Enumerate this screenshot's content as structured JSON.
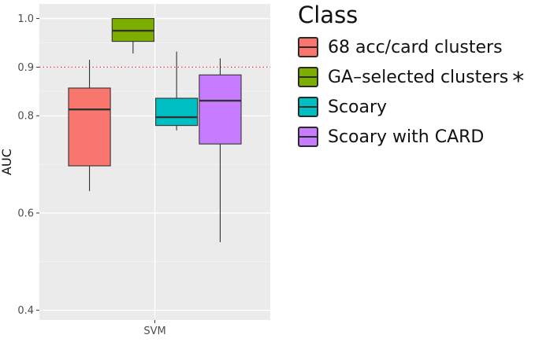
{
  "chart_data": {
    "type": "boxplot",
    "title": "",
    "xlabel": "",
    "ylabel": "AUC",
    "ylim": [
      0.38,
      1.03
    ],
    "yticks": [
      0.4,
      0.6,
      0.8,
      0.9,
      1.0
    ],
    "ytick_labels": [
      "0.4",
      "0.6",
      "0.8",
      "0.9",
      "1.0"
    ],
    "categories": [
      "SVM"
    ],
    "reference_line": {
      "y": 0.9,
      "style": "dotted",
      "color": "#e53935"
    },
    "legend": {
      "title": "Class",
      "placement": "right",
      "significance_mark": "*",
      "marked_series": "GA–selected clusters"
    },
    "series": [
      {
        "name": "68 acc/card clusters",
        "color": "#f8766d",
        "min": 0.645,
        "q1": 0.697,
        "median": 0.813,
        "q3": 0.857,
        "max": 0.915
      },
      {
        "name": "GA–selected clusters",
        "color": "#7cae00",
        "min": 0.928,
        "q1": 0.953,
        "median": 0.975,
        "q3": 1.0,
        "max": 1.0
      },
      {
        "name": "Scoary",
        "color": "#00bfc4",
        "min": 0.77,
        "q1": 0.78,
        "median": 0.797,
        "q3": 0.836,
        "max": 0.932
      },
      {
        "name": "Scoary with CARD",
        "color": "#c77cff",
        "min": 0.54,
        "q1": 0.742,
        "median": 0.831,
        "q3": 0.884,
        "max": 0.918
      }
    ]
  }
}
